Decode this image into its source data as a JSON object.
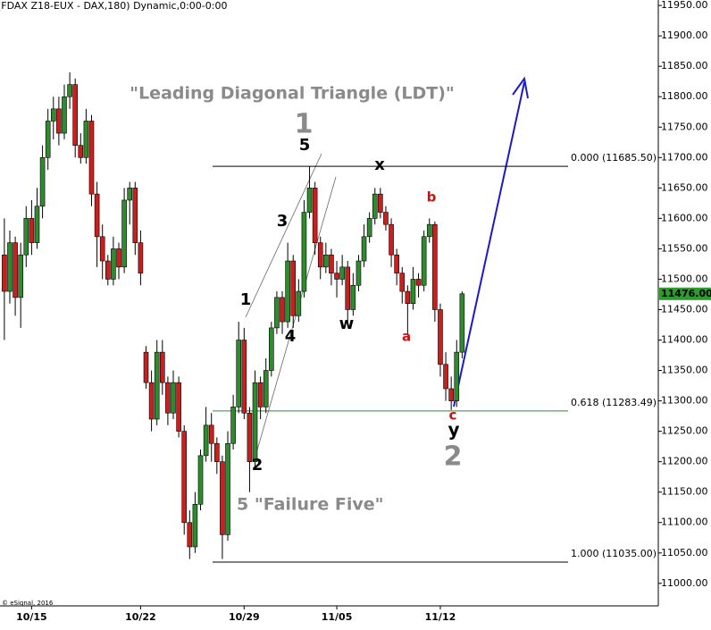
{
  "chart_data": {
    "type": "candlestick",
    "title": "(FDAX Z18-EUX - DAX,180) Dynamic,0:00-0:00",
    "up_color": "#2e8b2e",
    "down_color": "#c8201e",
    "ylim": [
      10963,
      11959
    ],
    "yticks": [
      {
        "value": 11000,
        "label": "11000.00"
      },
      {
        "value": 11050,
        "label": "11050.00"
      },
      {
        "value": 11100,
        "label": "11100.00"
      },
      {
        "value": 11150,
        "label": "11150.00"
      },
      {
        "value": 11200,
        "label": "11200.00"
      },
      {
        "value": 11250,
        "label": "11250.00"
      },
      {
        "value": 11300,
        "label": "11300.00"
      },
      {
        "value": 11350,
        "label": "11350.00"
      },
      {
        "value": 11400,
        "label": "11400.00"
      },
      {
        "value": 11450,
        "label": "11450.00"
      },
      {
        "value": 11500,
        "label": "11500.00"
      },
      {
        "value": 11550,
        "label": "11550.00"
      },
      {
        "value": 11600,
        "label": "11600.00"
      },
      {
        "value": 11650,
        "label": "11650.00"
      },
      {
        "value": 11700,
        "label": "11700.00"
      },
      {
        "value": 11750,
        "label": "11750.00"
      },
      {
        "value": 11800,
        "label": "11800.00"
      },
      {
        "value": 11850,
        "label": "11850.00"
      },
      {
        "value": 11900,
        "label": "11900.00"
      },
      {
        "value": 11950,
        "label": "11950.00"
      }
    ],
    "xlim": [
      -0.8,
      120
    ],
    "xticks": [
      {
        "value": 5,
        "label": "10/15"
      },
      {
        "value": 25,
        "label": "10/22"
      },
      {
        "value": 44,
        "label": "10/29"
      },
      {
        "value": 61,
        "label": "11/05"
      },
      {
        "value": 80,
        "label": "11/12"
      }
    ],
    "ohlc": [
      [
        11540,
        11600,
        11400,
        11480
      ],
      [
        11480,
        11580,
        11460,
        11560
      ],
      [
        11560,
        11570,
        11440,
        11470
      ],
      [
        11470,
        11560,
        11420,
        11540
      ],
      [
        11540,
        11620,
        11520,
        11600
      ],
      [
        11600,
        11630,
        11540,
        11560
      ],
      [
        11560,
        11650,
        11550,
        11620
      ],
      [
        11620,
        11720,
        11600,
        11700
      ],
      [
        11700,
        11780,
        11680,
        11760
      ],
      [
        11760,
        11800,
        11730,
        11780
      ],
      [
        11780,
        11800,
        11720,
        11740
      ],
      [
        11740,
        11820,
        11730,
        11800
      ],
      [
        11800,
        11840,
        11780,
        11820
      ],
      [
        11820,
        11830,
        11700,
        11720
      ],
      [
        11720,
        11740,
        11690,
        11700
      ],
      [
        11700,
        11780,
        11690,
        11760
      ],
      [
        11760,
        11770,
        11620,
        11640
      ],
      [
        11640,
        11660,
        11520,
        11570
      ],
      [
        11570,
        11590,
        11500,
        11530
      ],
      [
        11530,
        11540,
        11490,
        11500
      ],
      [
        11500,
        11570,
        11490,
        11550
      ],
      [
        11550,
        11560,
        11500,
        11520
      ],
      [
        11520,
        11650,
        11510,
        11630
      ],
      [
        11630,
        11660,
        11590,
        11650
      ],
      [
        11650,
        11660,
        11540,
        11560
      ],
      [
        11560,
        11580,
        11490,
        11510
      ],
      [
        11380,
        11390,
        11320,
        11330
      ],
      [
        11330,
        11350,
        11250,
        11270
      ],
      [
        11270,
        11400,
        11260,
        11380
      ],
      [
        11380,
        11400,
        11310,
        11330
      ],
      [
        11330,
        11340,
        11260,
        11280
      ],
      [
        11280,
        11350,
        11270,
        11330
      ],
      [
        11330,
        11340,
        11240,
        11250
      ],
      [
        11250,
        11260,
        11080,
        11100
      ],
      [
        11100,
        11120,
        11040,
        11060
      ],
      [
        11060,
        11150,
        11050,
        11130
      ],
      [
        11130,
        11220,
        11120,
        11210
      ],
      [
        11210,
        11290,
        11200,
        11260
      ],
      [
        11260,
        11280,
        11200,
        11230
      ],
      [
        11230,
        11240,
        11180,
        11200
      ],
      [
        11200,
        11210,
        11040,
        11080
      ],
      [
        11080,
        11250,
        11070,
        11230
      ],
      [
        11230,
        11310,
        11220,
        11290
      ],
      [
        11290,
        11430,
        11280,
        11400
      ],
      [
        11400,
        11420,
        11270,
        11280
      ],
      [
        11280,
        11290,
        11150,
        11200
      ],
      [
        11200,
        11350,
        11190,
        11330
      ],
      [
        11330,
        11340,
        11270,
        11290
      ],
      [
        11290,
        11370,
        11280,
        11350
      ],
      [
        11350,
        11430,
        11340,
        11420
      ],
      [
        11420,
        11480,
        11410,
        11470
      ],
      [
        11470,
        11480,
        11410,
        11430
      ],
      [
        11430,
        11560,
        11420,
        11530
      ],
      [
        11530,
        11540,
        11420,
        11440
      ],
      [
        11440,
        11500,
        11430,
        11480
      ],
      [
        11480,
        11630,
        11470,
        11610
      ],
      [
        11610,
        11685,
        11600,
        11650
      ],
      [
        11650,
        11660,
        11540,
        11560
      ],
      [
        11560,
        11570,
        11500,
        11520
      ],
      [
        11520,
        11560,
        11510,
        11540
      ],
      [
        11540,
        11550,
        11490,
        11510
      ],
      [
        11510,
        11530,
        11470,
        11500
      ],
      [
        11500,
        11540,
        11490,
        11520
      ],
      [
        11520,
        11530,
        11430,
        11450
      ],
      [
        11450,
        11510,
        11440,
        11490
      ],
      [
        11490,
        11540,
        11480,
        11530
      ],
      [
        11530,
        11590,
        11520,
        11570
      ],
      [
        11570,
        11610,
        11560,
        11600
      ],
      [
        11600,
        11650,
        11590,
        11640
      ],
      [
        11640,
        11650,
        11600,
        11610
      ],
      [
        11610,
        11620,
        11580,
        11590
      ],
      [
        11590,
        11600,
        11520,
        11540
      ],
      [
        11540,
        11550,
        11490,
        11510
      ],
      [
        11510,
        11520,
        11460,
        11480
      ],
      [
        11480,
        11490,
        11410,
        11460
      ],
      [
        11460,
        11520,
        11450,
        11500
      ],
      [
        11500,
        11510,
        11470,
        11490
      ],
      [
        11490,
        11580,
        11480,
        11570
      ],
      [
        11570,
        11600,
        11560,
        11590
      ],
      [
        11590,
        11595,
        11430,
        11450
      ],
      [
        11450,
        11460,
        11340,
        11360
      ],
      [
        11360,
        11380,
        11300,
        11320
      ],
      [
        11320,
        11340,
        11285,
        11300
      ],
      [
        11300,
        11400,
        11290,
        11380
      ],
      [
        11380,
        11480,
        11370,
        11476
      ]
    ],
    "levels": [
      {
        "value": 11685.5,
        "label": "0.000 (11685.50)",
        "color": "#000000"
      },
      {
        "value": 11283.49,
        "label": "0.618 (11283.49)",
        "color": "#2e8b2e"
      },
      {
        "value": 11035,
        "label": "1.000 (11035.00)",
        "color": "#000000"
      }
    ],
    "last_price": {
      "value": 11476,
      "label": "11476.00",
      "color": "#2e9b2e"
    },
    "annotations": [
      "\"Leading Diagonal Triangle (LDT)\"",
      "1",
      "5",
      "x",
      "3",
      "b",
      "1",
      "w",
      "4",
      "a",
      "c",
      "y",
      "2",
      "2",
      "5 \"Failure Five\"",
      "© eSignal, 2016"
    ]
  }
}
